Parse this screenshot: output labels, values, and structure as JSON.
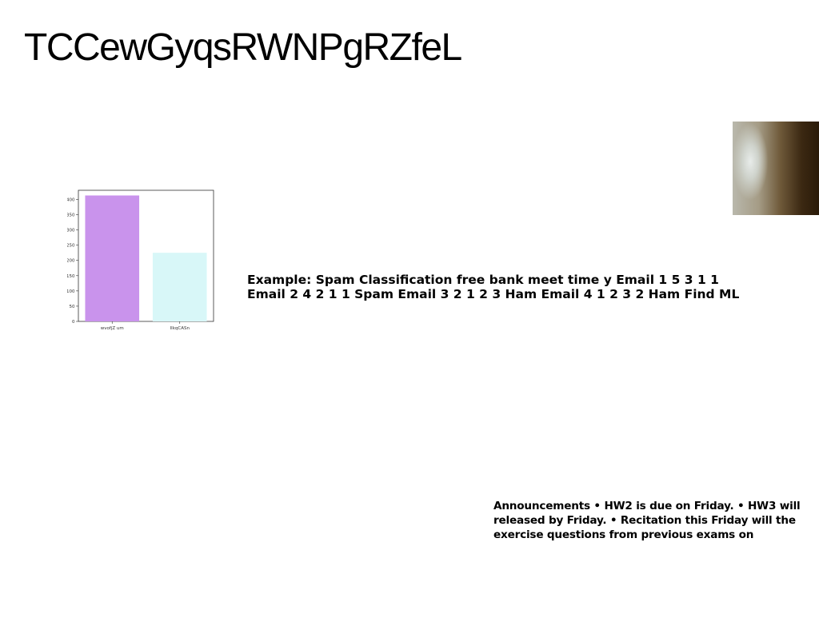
{
  "slide": {
    "title": "TCCewGyqsRWNPgRZfeL",
    "example_text": "Example: Spam Classification free bank meet time y Email 1 5 3 1 1 Email 2 4 2 1 1 Spam Email 3 2 1 2 3 Ham Email 4 1 2 3 2 Ham Find ML",
    "announcements_text": "Announcements • HW2 is due on Friday. • HW3 will released by Friday. • Recitation this Friday will the exercise questions from previous exams on"
  },
  "chart_data": {
    "type": "bar",
    "categories": [
      "wvofjZ um",
      "IlkqCASn"
    ],
    "values": [
      413,
      225
    ],
    "ylim": [
      0,
      430
    ],
    "yticks": [
      0,
      50,
      100,
      150,
      200,
      250,
      300,
      350,
      400
    ],
    "colors": [
      "#c993ec",
      "#d8f7f8"
    ],
    "title": "",
    "xlabel": "",
    "ylabel": "",
    "grid": false
  }
}
